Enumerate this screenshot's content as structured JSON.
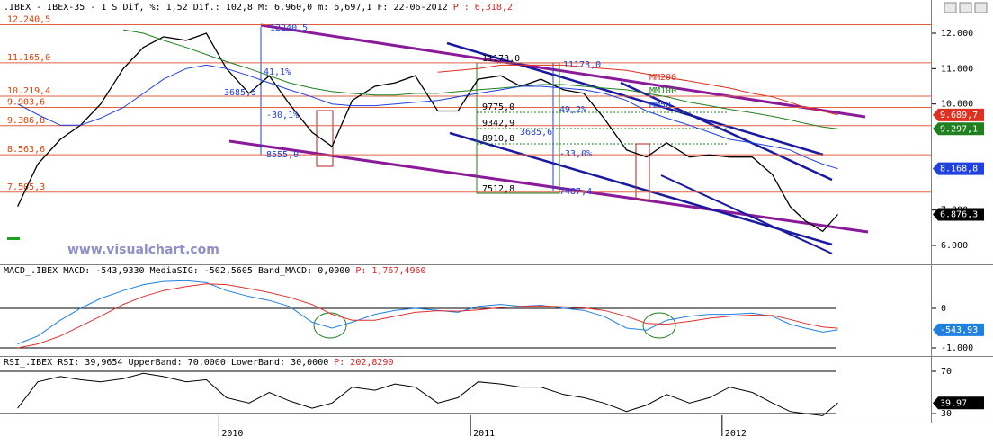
{
  "chart_data": [
    {
      "type": "line",
      "header": ".IBEX - IBEX-35 -  1 S Dif, %: 1,52 Dif.: 102,8 M: 6,960,0 m: 6,697,1 F: 22-06-2012",
      "header_p": "P : 6,318,2",
      "watermark": "www.visualchart.com",
      "x": [
        2009.2,
        2009.28,
        2009.37,
        2009.45,
        2009.53,
        2009.62,
        2009.7,
        2009.78,
        2009.87,
        2009.95,
        2010.03,
        2010.12,
        2010.2,
        2010.28,
        2010.37,
        2010.45,
        2010.53,
        2010.62,
        2010.7,
        2010.78,
        2010.87,
        2010.95,
        2011.03,
        2011.12,
        2011.2,
        2011.28,
        2011.37,
        2011.45,
        2011.53,
        2011.62,
        2011.7,
        2011.78,
        2011.87,
        2011.95,
        2012.03,
        2012.12,
        2012.2,
        2012.27,
        2012.33,
        2012.4,
        2012.46
      ],
      "xlim": [
        2009.13,
        2012.83
      ],
      "ylim": [
        5491,
        12941
      ],
      "yticks": [
        {
          "value": 12000,
          "label": "12.000"
        },
        {
          "value": 11000,
          "label": "11.000"
        },
        {
          "value": 10000,
          "label": "10.000"
        },
        {
          "value": 7000,
          "label": "7.000"
        },
        {
          "value": 6000,
          "label": "6.000"
        }
      ],
      "grid": false,
      "levels": [
        {
          "value": 12240.5,
          "label": "12.240,5"
        },
        {
          "value": 11165.0,
          "label": "11.165,0"
        },
        {
          "value": 10219.4,
          "label": "10.219,4"
        },
        {
          "value": 9903.6,
          "label": "9.903,6"
        },
        {
          "value": 9386.8,
          "label": "9.386,8"
        },
        {
          "value": 8563.6,
          "label": "8.563,6"
        },
        {
          "value": 7505.3,
          "label": "7.505,3"
        }
      ],
      "annotations": [
        "12240,5",
        "41,1%",
        "3685,5",
        "-30,1%",
        "8555,0",
        "11173,0",
        "11173,0",
        "9775,0",
        "49,2%",
        "9342,9",
        "3685,6",
        "8910,8",
        "-33,0%",
        "7512,8",
        "7487,4"
      ],
      "series": [
        {
          "color": "#000000",
          "values": [
            7100,
            8300,
            9000,
            9400,
            10000,
            11000,
            11600,
            11900,
            11800,
            12000,
            11000,
            10300,
            10800,
            10000,
            9200,
            8800,
            10100,
            10500,
            10600,
            10800,
            9800,
            9800,
            10700,
            10800,
            10500,
            10700,
            10400,
            10300,
            9600,
            8700,
            8500,
            8900,
            8500,
            8560,
            8500,
            8500,
            8000,
            7100,
            6700,
            6400,
            6876.3
          ],
          "tag": {
            "value": 6876.3,
            "label": "6.876,3"
          }
        },
        {
          "name": "MM200",
          "color": "#e03020",
          "values": [
            null,
            null,
            null,
            null,
            null,
            null,
            null,
            null,
            null,
            null,
            null,
            null,
            null,
            null,
            null,
            null,
            null,
            null,
            null,
            null,
            10900,
            10950,
            11000,
            11100,
            11100,
            11100,
            11100,
            11050,
            11000,
            10950,
            10850,
            10750,
            10650,
            10550,
            10450,
            10300,
            10200,
            10050,
            9900,
            9800,
            9689.7
          ],
          "tag": {
            "value": 9689.7,
            "label": "9.689,7"
          }
        },
        {
          "name": "MM100",
          "color": "#208020",
          "values": [
            null,
            null,
            null,
            null,
            null,
            12100,
            12000,
            11800,
            11600,
            11400,
            11200,
            11000,
            10800,
            10600,
            10450,
            10350,
            10300,
            10250,
            10250,
            10300,
            10300,
            10350,
            10400,
            10450,
            10500,
            10550,
            10550,
            10500,
            10450,
            10400,
            10300,
            10200,
            10050,
            9950,
            9850,
            9750,
            9650,
            9550,
            9450,
            9350,
            9297.1
          ],
          "tag": {
            "value": 9297.1,
            "label": "9.297,1"
          }
        },
        {
          "name": "MM50",
          "color": "#2040e0",
          "values": [
            10000,
            9700,
            9400,
            9400,
            9600,
            9900,
            10300,
            10700,
            11000,
            11100,
            11000,
            10800,
            10600,
            10400,
            10200,
            10000,
            9950,
            9950,
            10000,
            10050,
            10100,
            10200,
            10300,
            10400,
            10500,
            10500,
            10450,
            10400,
            10300,
            10100,
            9800,
            9600,
            9400,
            9200,
            9000,
            8900,
            8800,
            8700,
            8500,
            8300,
            8168.8
          ],
          "tag": {
            "value": 8168.8,
            "label": "8.168,8"
          }
        }
      ]
    },
    {
      "type": "line",
      "header": "MACD_.IBEX MACD: -543,9330 MediaSIG: -502,5605 Band_MACD: 0,0000",
      "header_p": "P: 1,767,4960",
      "x": [
        2009.2,
        2009.28,
        2009.37,
        2009.45,
        2009.53,
        2009.62,
        2009.7,
        2009.78,
        2009.87,
        2009.95,
        2010.03,
        2010.12,
        2010.2,
        2010.28,
        2010.37,
        2010.45,
        2010.53,
        2010.62,
        2010.7,
        2010.78,
        2010.87,
        2010.95,
        2011.03,
        2011.12,
        2011.2,
        2011.28,
        2011.37,
        2011.45,
        2011.53,
        2011.62,
        2011.7,
        2011.78,
        2011.87,
        2011.95,
        2012.03,
        2012.12,
        2012.2,
        2012.27,
        2012.33,
        2012.4,
        2012.46
      ],
      "xlim": [
        2009.13,
        2012.83
      ],
      "ylim": [
        -1182,
        1045
      ],
      "yticks": [
        0,
        {
          "value": -1000,
          "label": "-1.000"
        }
      ],
      "grid": true,
      "series": [
        {
          "color": "#2080e0",
          "values": [
            -900,
            -700,
            -300,
            0,
            250,
            450,
            600,
            680,
            700,
            650,
            450,
            300,
            200,
            50,
            -350,
            -500,
            -350,
            -150,
            -50,
            0,
            -50,
            -100,
            50,
            100,
            50,
            80,
            0,
            -50,
            -200,
            -500,
            -550,
            -300,
            -200,
            -150,
            -150,
            -120,
            -200,
            -400,
            -500,
            -600,
            -543.933
          ],
          "tag": {
            "value": -543.93,
            "label": "-543,93"
          }
        },
        {
          "color": "#e03030",
          "values": [
            -1000,
            -900,
            -700,
            -450,
            -200,
            100,
            300,
            450,
            550,
            620,
            600,
            500,
            400,
            280,
            100,
            -150,
            -300,
            -300,
            -200,
            -100,
            -60,
            -70,
            -40,
            20,
            50,
            60,
            40,
            10,
            -50,
            -200,
            -380,
            -400,
            -330,
            -250,
            -200,
            -170,
            -180,
            -280,
            -380,
            -470,
            -502.5605
          ]
        }
      ]
    },
    {
      "type": "line",
      "header": "RSI_.IBEX RSI: 39,9654 UpperBand: 70,0000 LowerBand: 30,0000",
      "header_p": "P: 202,8290",
      "x": [
        2009.2,
        2009.28,
        2009.37,
        2009.45,
        2009.53,
        2009.62,
        2009.7,
        2009.78,
        2009.87,
        2009.95,
        2010.03,
        2010.12,
        2010.2,
        2010.28,
        2010.37,
        2010.45,
        2010.53,
        2010.62,
        2010.7,
        2010.78,
        2010.87,
        2010.95,
        2011.03,
        2011.12,
        2011.2,
        2011.28,
        2011.37,
        2011.45,
        2011.53,
        2011.62,
        2011.7,
        2011.78,
        2011.87,
        2011.95,
        2012.03,
        2012.12,
        2012.2,
        2012.27,
        2012.33,
        2012.4,
        2012.46
      ],
      "xlim": [
        2009.13,
        2012.83
      ],
      "xticks": [
        2010,
        2011,
        2012
      ],
      "ylim": [
        21.5,
        81.9
      ],
      "yticks": [
        70,
        30
      ],
      "grid": true,
      "series": [
        {
          "color": "#000000",
          "values": [
            35,
            60,
            65,
            62,
            60,
            63,
            68,
            65,
            60,
            62,
            45,
            40,
            50,
            42,
            35,
            40,
            55,
            52,
            58,
            55,
            40,
            45,
            60,
            58,
            55,
            55,
            48,
            45,
            40,
            32,
            38,
            48,
            40,
            45,
            55,
            50,
            40,
            32,
            30,
            28,
            39.9654
          ],
          "tag": {
            "value": 39.97,
            "label": "39,97"
          }
        }
      ]
    }
  ]
}
